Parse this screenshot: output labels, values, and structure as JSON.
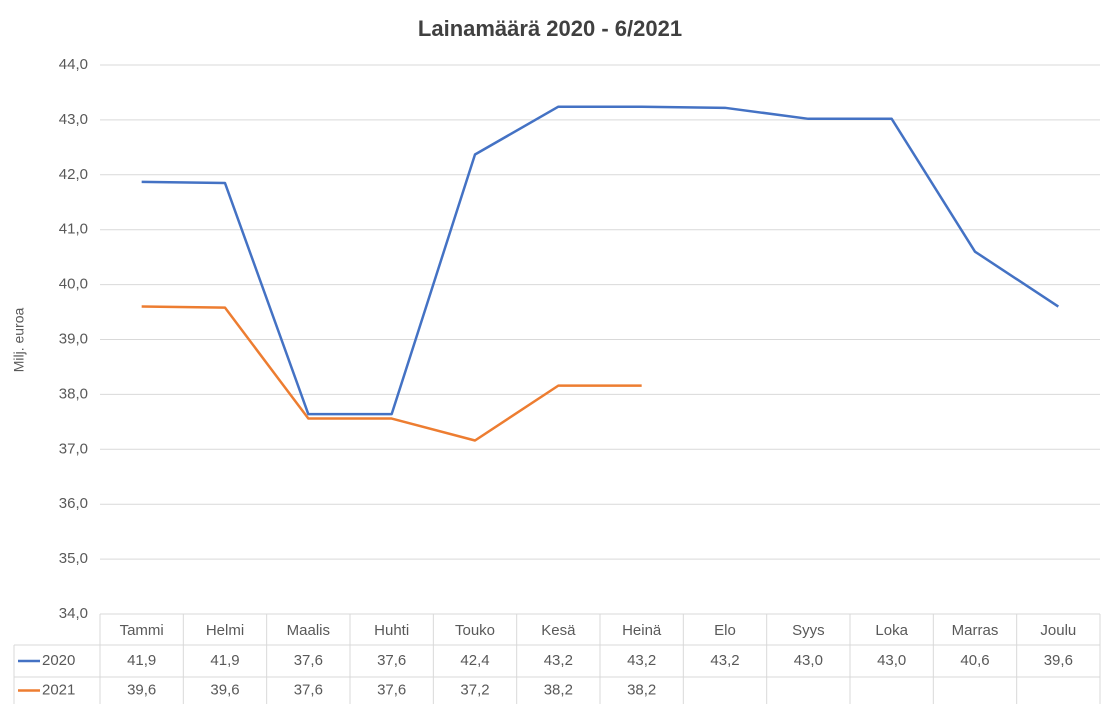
{
  "chart_data": {
    "type": "line",
    "title": "Lainamäärä 2020 - 6/2021",
    "y_label": "Milj. euroa",
    "categories": [
      "Tammi",
      "Helmi",
      "Maalis",
      "Huhti",
      "Touko",
      "Kesä",
      "Heinä",
      "Elo",
      "Syys",
      "Loka",
      "Marras",
      "Joulu"
    ],
    "series": [
      {
        "name": "2020",
        "color": "#4472c4",
        "values": [
          41.87,
          41.85,
          37.64,
          37.64,
          42.37,
          43.24,
          43.24,
          43.22,
          43.02,
          43.02,
          40.6,
          39.6
        ],
        "value_labels": [
          "41,9",
          "41,9",
          "37,6",
          "37,6",
          "42,4",
          "43,2",
          "43,2",
          "43,2",
          "43,0",
          "43,0",
          "40,6",
          "39,6"
        ]
      },
      {
        "name": "2021",
        "color": "#ed7d31",
        "values": [
          39.6,
          39.58,
          37.56,
          37.56,
          37.16,
          38.16,
          38.16,
          null,
          null,
          null,
          null,
          null
        ],
        "value_labels": [
          "39,6",
          "39,6",
          "37,6",
          "37,6",
          "37,2",
          "38,2",
          "38,2",
          null,
          null,
          null,
          null,
          null
        ]
      }
    ],
    "ylim": [
      34,
      44
    ],
    "yticks": [
      {
        "value": 34,
        "label": "34,0"
      },
      {
        "value": 35,
        "label": "35,0"
      },
      {
        "value": 36,
        "label": "36,0"
      },
      {
        "value": 37,
        "label": "37,0"
      },
      {
        "value": 38,
        "label": "38,0"
      },
      {
        "value": 39,
        "label": "39,0"
      },
      {
        "value": 40,
        "label": "40,0"
      },
      {
        "value": 41,
        "label": "41,0"
      },
      {
        "value": 42,
        "label": "42,0"
      },
      {
        "value": 43,
        "label": "43,0"
      },
      {
        "value": 44,
        "label": "44,0"
      }
    ],
    "grid": true
  }
}
